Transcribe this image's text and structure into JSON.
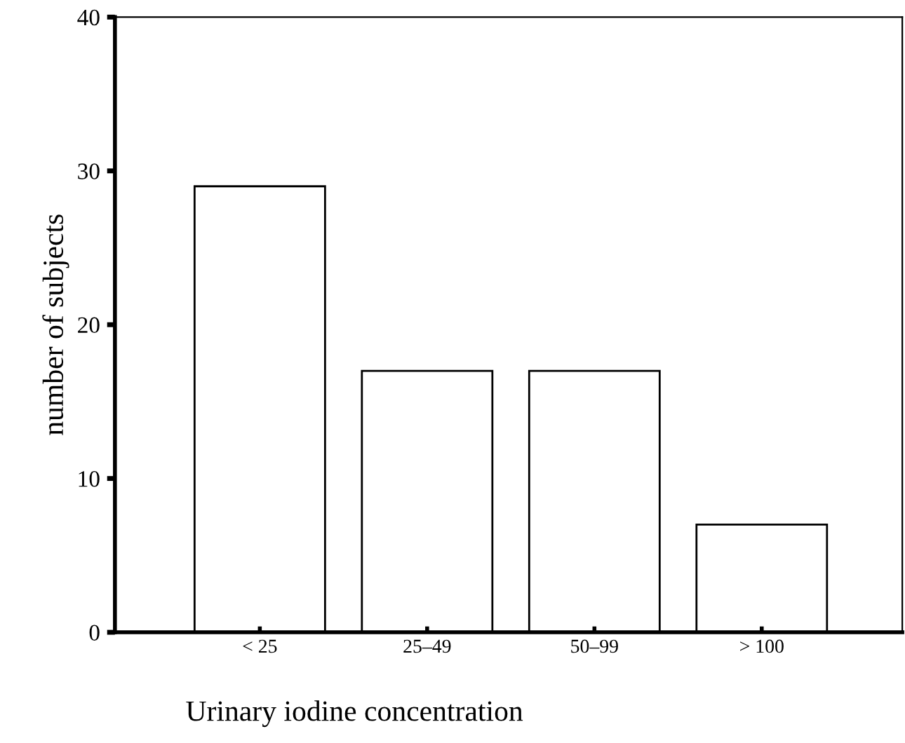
{
  "chart_data": {
    "type": "bar",
    "xlabel": "Urinary iodine concentration",
    "ylabel": "number of subjects",
    "categories": [
      "< 25",
      "25–49",
      "50–99",
      "> 100"
    ],
    "values": [
      29,
      17,
      17,
      7
    ],
    "color": "#ffffff",
    "ylim": [
      0,
      40
    ],
    "yticks": [
      0,
      10,
      20,
      30,
      40
    ],
    "grid": false,
    "legend": false
  }
}
